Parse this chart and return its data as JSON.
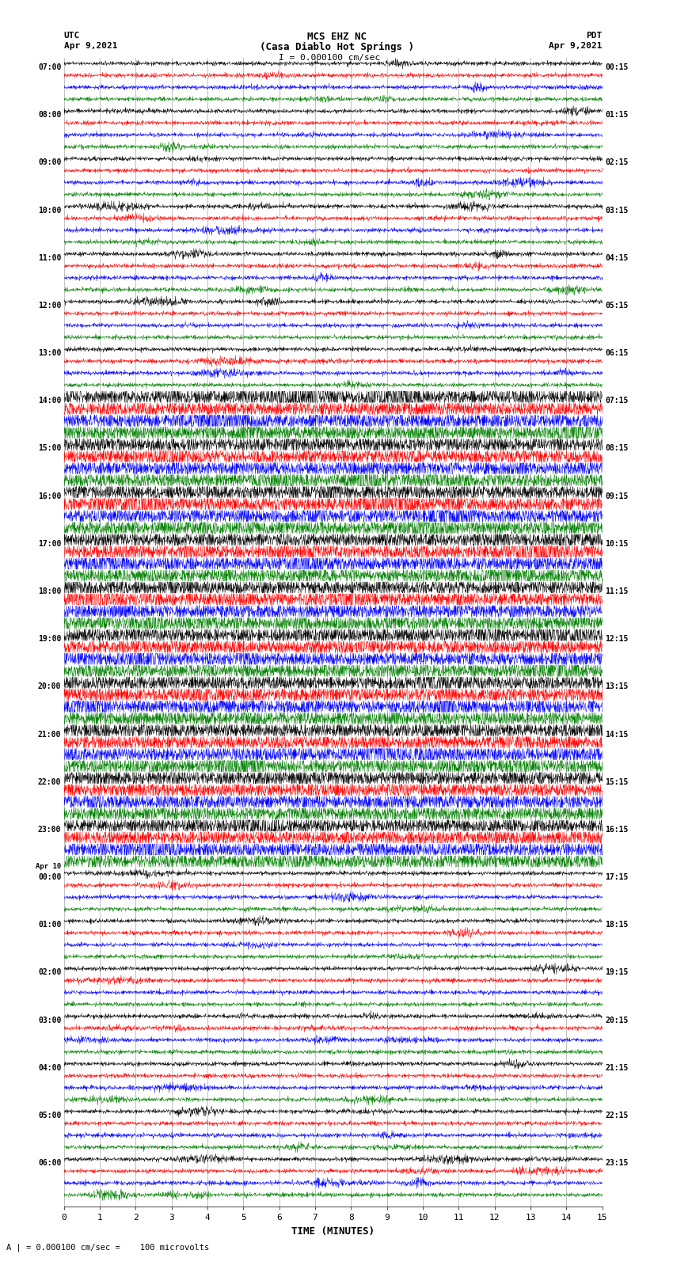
{
  "title_line1": "MCS EHZ NC",
  "title_line2": "(Casa Diablo Hot Springs )",
  "title_line3": "I = 0.000100 cm/sec",
  "label_utc": "UTC",
  "label_pdt": "PDT",
  "date_left": "Apr 9,2021",
  "date_right": "Apr 9,2021",
  "xlabel": "TIME (MINUTES)",
  "footer": "A | = 0.000100 cm/sec =    100 microvolts",
  "utc_times": [
    "07:00",
    "08:00",
    "09:00",
    "10:00",
    "11:00",
    "12:00",
    "13:00",
    "14:00",
    "15:00",
    "16:00",
    "17:00",
    "18:00",
    "19:00",
    "20:00",
    "21:00",
    "22:00",
    "23:00",
    "00:00",
    "01:00",
    "02:00",
    "03:00",
    "04:00",
    "05:00",
    "06:00"
  ],
  "pdt_times": [
    "00:15",
    "01:15",
    "02:15",
    "03:15",
    "04:15",
    "05:15",
    "06:15",
    "07:15",
    "08:15",
    "09:15",
    "10:15",
    "11:15",
    "12:15",
    "13:15",
    "14:15",
    "15:15",
    "16:15",
    "17:15",
    "18:15",
    "19:15",
    "20:15",
    "21:15",
    "22:15",
    "23:15"
  ],
  "apr10_hour_idx": 17,
  "n_hours": 24,
  "traces_per_hour": 4,
  "n_minutes": 15,
  "colors": [
    "black",
    "red",
    "blue",
    "green"
  ],
  "bg_color": "#ffffff",
  "grid_color": "#888888",
  "seed": 42
}
